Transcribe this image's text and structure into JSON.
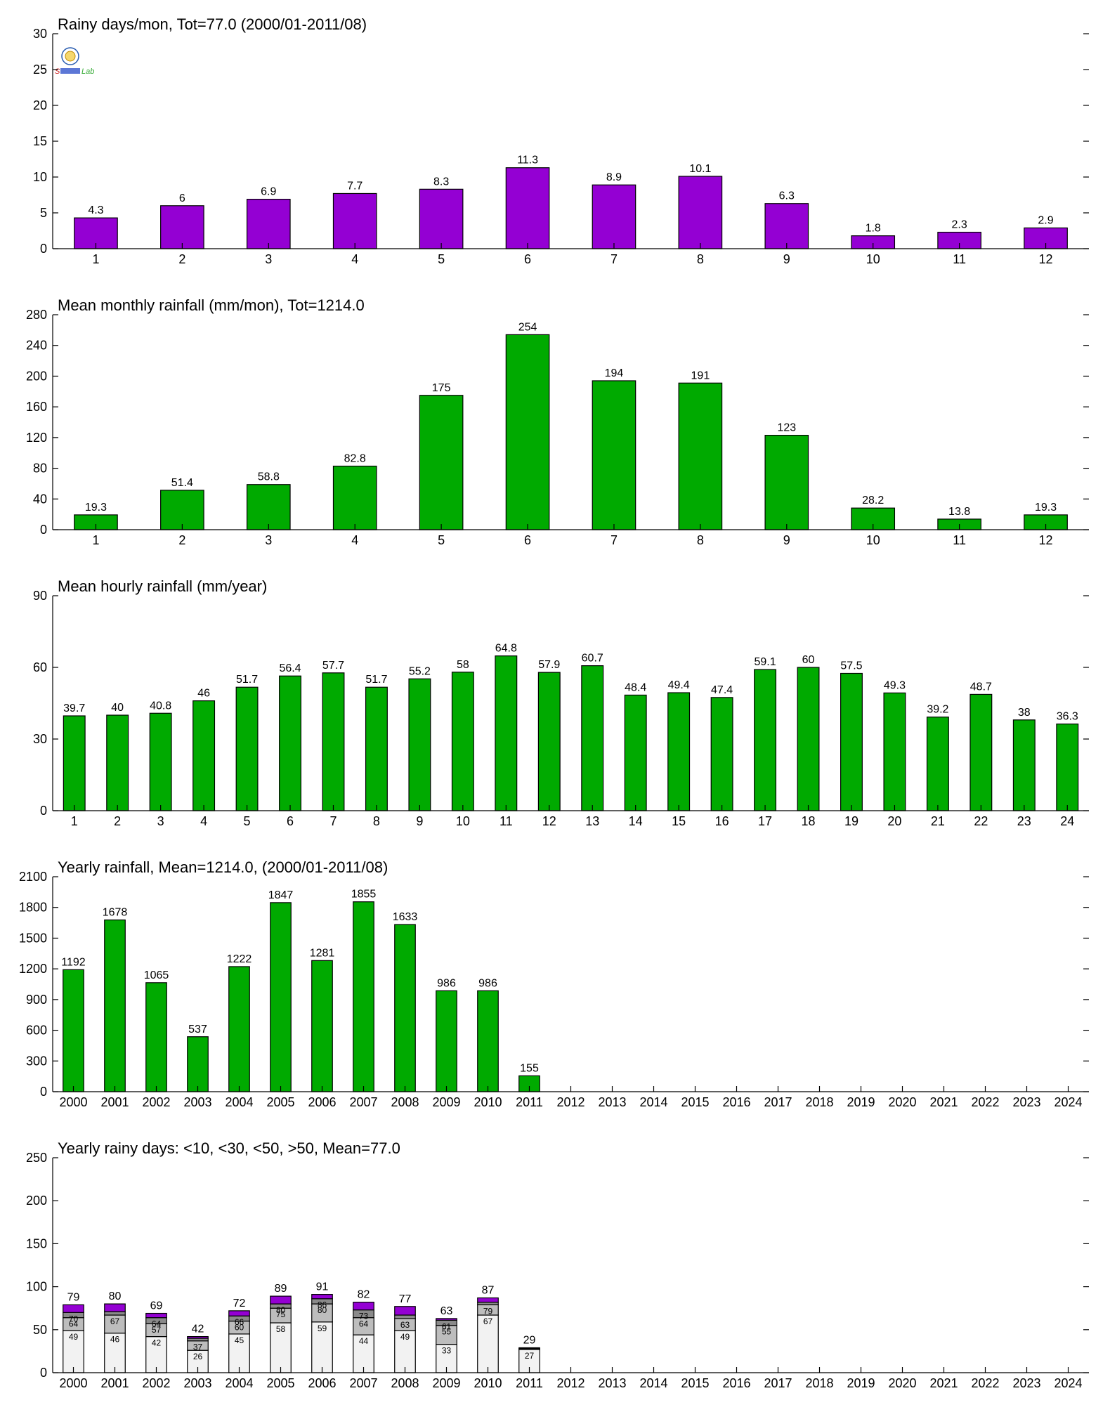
{
  "colors": {
    "purple": "#9400d3",
    "green": "#00aa00",
    "seg1": "#f2f2f2",
    "seg2": "#bdbdbd",
    "seg3": "#8a8a8a",
    "seg4": "#9400d3"
  },
  "logo": {
    "icon": "lab-logo-icon",
    "text": "Lab"
  },
  "chart_data": [
    {
      "id": "rainy-days",
      "type": "bar",
      "title": "Rainy days/mon, Tot=77.0 (2000/01-2011/08)",
      "categories": [
        "1",
        "2",
        "3",
        "4",
        "5",
        "6",
        "7",
        "8",
        "9",
        "10",
        "11",
        "12"
      ],
      "values": [
        4.3,
        6,
        6.9,
        7.7,
        8.3,
        11.3,
        8.9,
        10.1,
        6.3,
        1.8,
        2.3,
        2.9
      ],
      "labels": [
        "4.3",
        "6",
        "6.9",
        "7.7",
        "8.3",
        "11.3",
        "8.9",
        "10.1",
        "6.3",
        "1.8",
        "2.3",
        "2.9"
      ],
      "ylim": [
        0,
        30
      ],
      "yticks": [
        "0",
        "5",
        "10",
        "15",
        "20",
        "25",
        "30"
      ],
      "color": "#9400d3"
    },
    {
      "id": "monthly-rainfall",
      "type": "bar",
      "title": "Mean monthly rainfall (mm/mon), Tot=1214.0",
      "categories": [
        "1",
        "2",
        "3",
        "4",
        "5",
        "6",
        "7",
        "8",
        "9",
        "10",
        "11",
        "12"
      ],
      "values": [
        19.3,
        51.4,
        58.8,
        82.8,
        175,
        254,
        194,
        191,
        123,
        28.2,
        13.8,
        19.3
      ],
      "labels": [
        "19.3",
        "51.4",
        "58.8",
        "82.8",
        "175",
        "254",
        "194",
        "191",
        "123",
        "28.2",
        "13.8",
        "19.3"
      ],
      "ylim": [
        0,
        280
      ],
      "yticks": [
        "0",
        "40",
        "80",
        "120",
        "160",
        "200",
        "240",
        "280"
      ],
      "color": "#00aa00"
    },
    {
      "id": "hourly-rainfall",
      "type": "bar",
      "title": "Mean hourly rainfall (mm/year)",
      "categories": [
        "1",
        "2",
        "3",
        "4",
        "5",
        "6",
        "7",
        "8",
        "9",
        "10",
        "11",
        "12",
        "13",
        "14",
        "15",
        "16",
        "17",
        "18",
        "19",
        "20",
        "21",
        "22",
        "23",
        "24"
      ],
      "values": [
        39.7,
        40,
        40.8,
        46,
        51.7,
        56.4,
        57.7,
        51.7,
        55.2,
        58,
        64.8,
        57.9,
        60.7,
        48.4,
        49.4,
        47.4,
        59.1,
        60,
        57.5,
        49.3,
        39.2,
        48.7,
        38,
        36.3
      ],
      "labels": [
        "39.7",
        "40",
        "40.8",
        "46",
        "51.7",
        "56.4",
        "57.7",
        "51.7",
        "55.2",
        "58",
        "64.8",
        "57.9",
        "60.7",
        "48.4",
        "49.4",
        "47.4",
        "59.1",
        "60",
        "57.5",
        "49.3",
        "39.2",
        "48.7",
        "38",
        "36.3"
      ],
      "ylim": [
        0,
        90
      ],
      "yticks": [
        "0",
        "30",
        "60",
        "90"
      ],
      "color": "#00aa00"
    },
    {
      "id": "yearly-rainfall",
      "type": "bar",
      "title": "Yearly rainfall, Mean=1214.0, (2000/01-2011/08)",
      "categories": [
        "2000",
        "2001",
        "2002",
        "2003",
        "2004",
        "2005",
        "2006",
        "2007",
        "2008",
        "2009",
        "2010",
        "2011",
        "2012",
        "2013",
        "2014",
        "2015",
        "2016",
        "2017",
        "2018",
        "2019",
        "2020",
        "2021",
        "2022",
        "2023",
        "2024"
      ],
      "values": [
        1192,
        1678,
        1065,
        537,
        1222,
        1847,
        1281,
        1855,
        1633,
        986,
        986,
        155,
        null,
        null,
        null,
        null,
        null,
        null,
        null,
        null,
        null,
        null,
        null,
        null,
        null
      ],
      "labels": [
        "1192",
        "1678",
        "1065",
        "537",
        "1222",
        "1847",
        "1281",
        "1855",
        "1633",
        "986",
        "986",
        "155",
        "",
        "",
        "",
        "",
        "",
        "",
        "",
        "",
        "",
        "",
        "",
        "",
        " "
      ],
      "ylim": [
        0,
        2100
      ],
      "yticks": [
        "0",
        "300",
        "600",
        "900",
        "1200",
        "1500",
        "1800",
        "2100"
      ],
      "color": "#00aa00"
    },
    {
      "id": "yearly-rainy-days",
      "type": "bar",
      "stacked": true,
      "title": "Yearly rainy days: <10, <30, <50, >50, Mean=77.0",
      "categories": [
        "2000",
        "2001",
        "2002",
        "2003",
        "2004",
        "2005",
        "2006",
        "2007",
        "2008",
        "2009",
        "2010",
        "2011",
        "2012",
        "2013",
        "2014",
        "2015",
        "2016",
        "2017",
        "2018",
        "2019",
        "2020",
        "2021",
        "2022",
        "2023",
        "2024"
      ],
      "totals": [
        79,
        80,
        69,
        42,
        72,
        89,
        91,
        82,
        77,
        63,
        87,
        29,
        null,
        null,
        null,
        null,
        null,
        null,
        null,
        null,
        null,
        null,
        null,
        null,
        null
      ],
      "totals_labels": [
        "79",
        "80",
        "69",
        "42",
        "72",
        "89",
        "91",
        "82",
        "77",
        "63",
        "87",
        "29",
        "",
        "",
        "",
        "",
        "",
        "",
        "",
        "",
        "",
        "",
        "",
        "",
        ""
      ],
      "cumulative": [
        [
          49,
          64,
          70,
          79
        ],
        [
          46,
          67,
          71,
          80
        ],
        [
          42,
          57,
          64,
          69
        ],
        [
          26,
          37,
          40,
          42
        ],
        [
          45,
          60,
          66,
          72
        ],
        [
          58,
          75,
          80,
          89
        ],
        [
          59,
          80,
          86,
          91
        ],
        [
          44,
          64,
          73,
          82
        ],
        [
          49,
          63,
          67,
          77
        ],
        [
          33,
          55,
          61,
          63
        ],
        [
          67,
          79,
          82,
          87
        ],
        [
          27,
          28,
          29,
          29
        ],
        null,
        null,
        null,
        null,
        null,
        null,
        null,
        null,
        null,
        null,
        null,
        null,
        null
      ],
      "cumulative_labels": [
        [
          "49",
          "64",
          "70"
        ],
        [
          "46",
          "67",
          ""
        ],
        [
          "42",
          "57",
          "64"
        ],
        [
          "26",
          "37",
          ""
        ],
        [
          "45",
          "60",
          "66"
        ],
        [
          "58",
          "75",
          "80"
        ],
        [
          "59",
          "80",
          "86"
        ],
        [
          "44",
          "64",
          "73"
        ],
        [
          "49",
          "63",
          ""
        ],
        [
          "33",
          "55",
          "61"
        ],
        [
          "67",
          "79",
          ""
        ],
        [
          "27",
          "",
          ""
        ],
        null,
        null,
        null,
        null,
        null,
        null,
        null,
        null,
        null,
        null,
        null,
        null,
        null
      ],
      "ylim": [
        0,
        250
      ],
      "yticks": [
        "0",
        "50",
        "100",
        "150",
        "200",
        "250"
      ]
    }
  ]
}
